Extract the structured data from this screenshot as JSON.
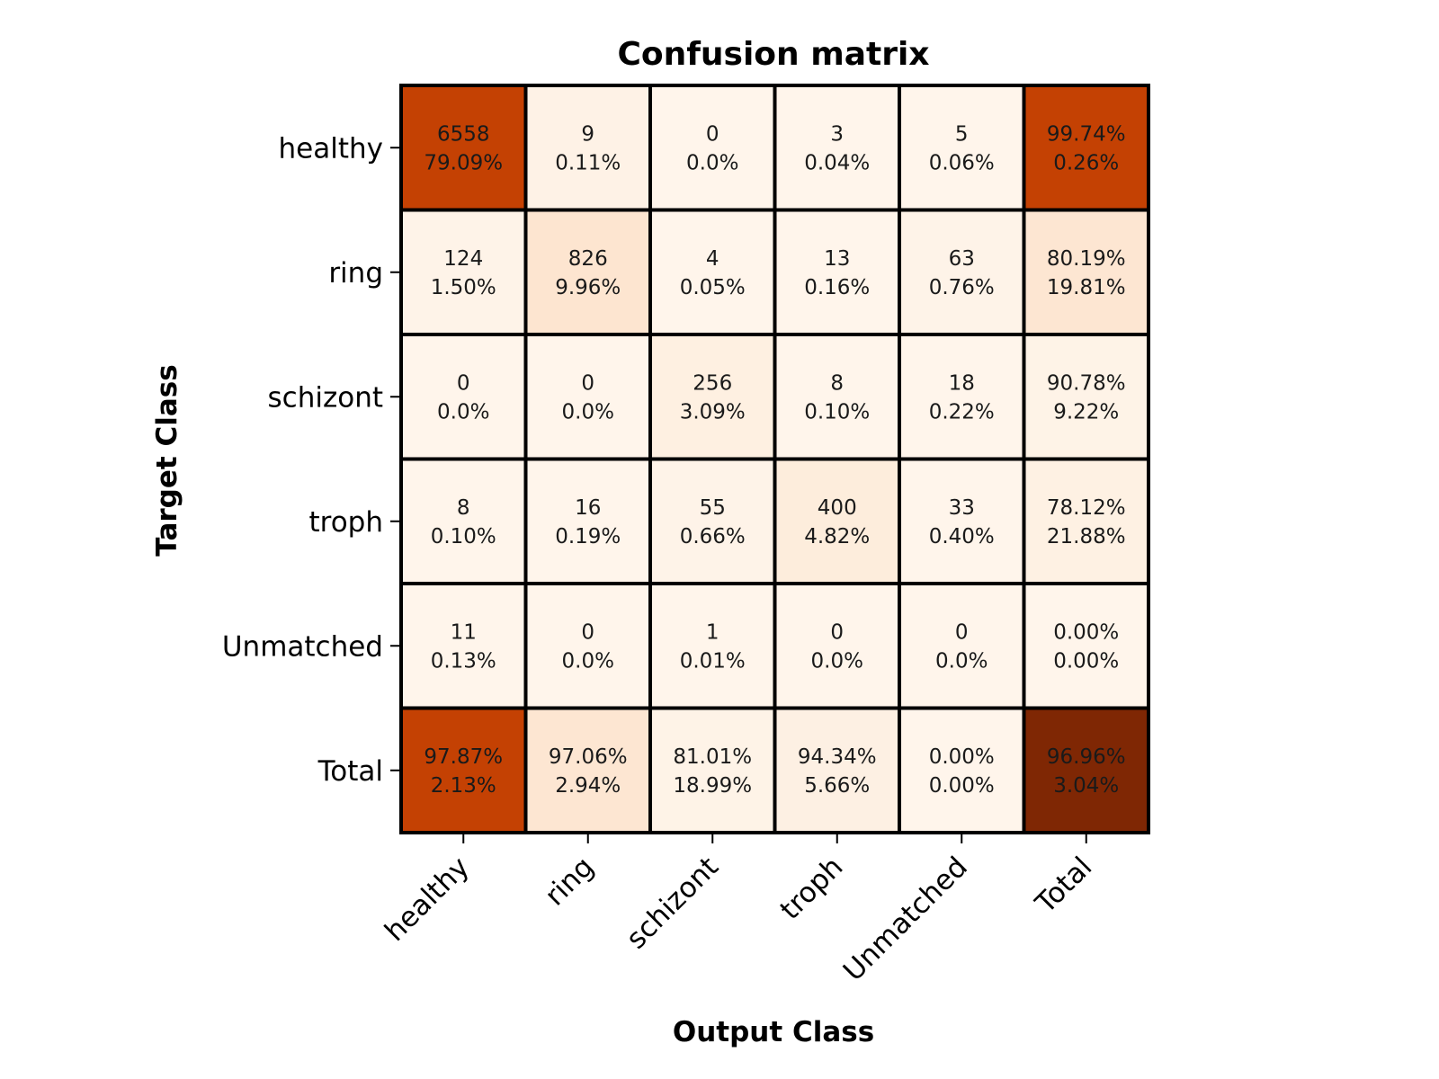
{
  "chart_data": {
    "type": "heatmap",
    "title": "Confusion matrix",
    "xlabel": "Output Class",
    "ylabel": "Target Class",
    "x_categories": [
      "healthy",
      "ring",
      "schizont",
      "troph",
      "Unmatched",
      "Total"
    ],
    "y_categories": [
      "healthy",
      "ring",
      "schizont",
      "troph",
      "Unmatched",
      "Total"
    ],
    "cells": [
      [
        [
          "6558",
          "79.09%"
        ],
        [
          "9",
          "0.11%"
        ],
        [
          "0",
          "0.0%"
        ],
        [
          "3",
          "0.04%"
        ],
        [
          "5",
          "0.06%"
        ],
        [
          "99.74%",
          "0.26%"
        ]
      ],
      [
        [
          "124",
          "1.50%"
        ],
        [
          "826",
          "9.96%"
        ],
        [
          "4",
          "0.05%"
        ],
        [
          "13",
          "0.16%"
        ],
        [
          "63",
          "0.76%"
        ],
        [
          "80.19%",
          "19.81%"
        ]
      ],
      [
        [
          "0",
          "0.0%"
        ],
        [
          "0",
          "0.0%"
        ],
        [
          "256",
          "3.09%"
        ],
        [
          "8",
          "0.10%"
        ],
        [
          "18",
          "0.22%"
        ],
        [
          "90.78%",
          "9.22%"
        ]
      ],
      [
        [
          "8",
          "0.10%"
        ],
        [
          "16",
          "0.19%"
        ],
        [
          "55",
          "0.66%"
        ],
        [
          "400",
          "4.82%"
        ],
        [
          "33",
          "0.40%"
        ],
        [
          "78.12%",
          "21.88%"
        ]
      ],
      [
        [
          "11",
          "0.13%"
        ],
        [
          "0",
          "0.0%"
        ],
        [
          "1",
          "0.01%"
        ],
        [
          "0",
          "0.0%"
        ],
        [
          "0",
          "0.0%"
        ],
        [
          "0.00%",
          "0.00%"
        ]
      ],
      [
        [
          "97.87%",
          "2.13%"
        ],
        [
          "97.06%",
          "2.94%"
        ],
        [
          "81.01%",
          "18.99%"
        ],
        [
          "94.34%",
          "5.66%"
        ],
        [
          "0.00%",
          "0.00%"
        ],
        [
          "96.96%",
          "3.04%"
        ]
      ]
    ],
    "cell_colors": [
      [
        "#c44103",
        "#fef2e6",
        "#fff5eb",
        "#fff5eb",
        "#fff5eb",
        "#c44103"
      ],
      [
        "#fef3e8",
        "#fde5d0",
        "#fff5eb",
        "#fff5eb",
        "#fef3e8",
        "#fde6d2"
      ],
      [
        "#fff5eb",
        "#fff5eb",
        "#fef0e1",
        "#fff5eb",
        "#fff5eb",
        "#fef3e7"
      ],
      [
        "#fff5eb",
        "#fff5eb",
        "#fef3e8",
        "#fdeddc",
        "#fff5eb",
        "#fef1e3"
      ],
      [
        "#fff5eb",
        "#fff5eb",
        "#fff5eb",
        "#fff5eb",
        "#fff5eb",
        "#fff5eb"
      ],
      [
        "#c44103",
        "#fde6d2",
        "#fef3e7",
        "#fdf0e3",
        "#fff5eb",
        "#7f2704"
      ]
    ],
    "grid": false,
    "legend": "none"
  }
}
